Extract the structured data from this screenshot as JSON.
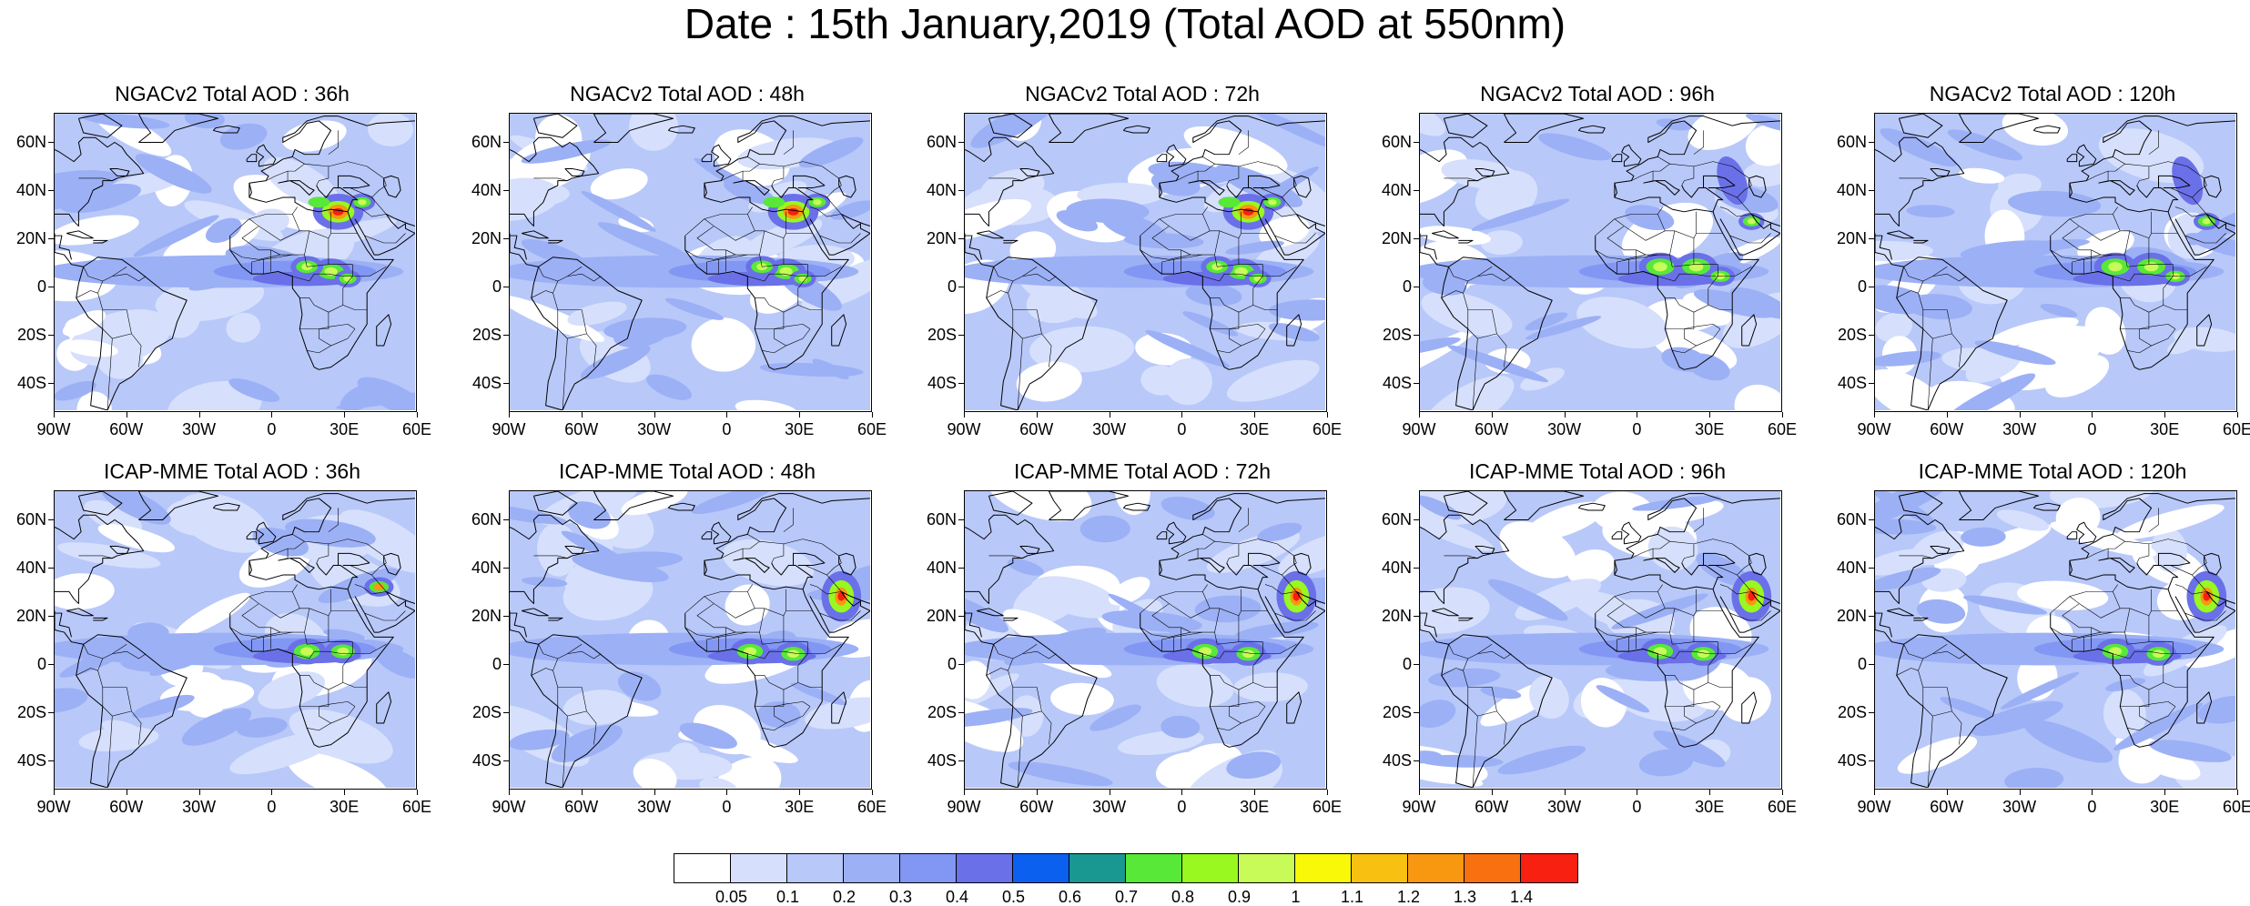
{
  "title": "Date : 15th January,2019 (Total AOD at 550nm)",
  "panels": [
    {
      "title": "NGACv2 Total AOD : 36h",
      "variant": 0,
      "plume": "source-heavy"
    },
    {
      "title": "NGACv2 Total AOD : 48h",
      "variant": 1,
      "plume": "source-heavy"
    },
    {
      "title": "NGACv2 Total AOD : 72h",
      "variant": 2,
      "plume": "source-heavy"
    },
    {
      "title": "NGACv2 Total AOD : 96h",
      "variant": 3,
      "plume": "belt"
    },
    {
      "title": "NGACv2 Total AOD : 120h",
      "variant": 4,
      "plume": "belt"
    },
    {
      "title": "ICAP-MME Total AOD : 36h",
      "variant": 5,
      "plume": "belt-east"
    },
    {
      "title": "ICAP-MME Total AOD : 48h",
      "variant": 6,
      "plume": "belt-arabia"
    },
    {
      "title": "ICAP-MME Total AOD : 72h",
      "variant": 7,
      "plume": "belt-arabia"
    },
    {
      "title": "ICAP-MME Total AOD : 96h",
      "variant": 8,
      "plume": "belt-arabia"
    },
    {
      "title": "ICAP-MME Total AOD : 120h",
      "variant": 9,
      "plume": "belt-arabia"
    }
  ],
  "axes": {
    "lat_ticks": [
      "60N",
      "40N",
      "20N",
      "0",
      "20S",
      "40S"
    ],
    "lon_ticks": [
      "90W",
      "60W",
      "30W",
      "0",
      "30E",
      "60E"
    ],
    "lat_range": [
      -52,
      72
    ],
    "lon_range": [
      -90,
      60
    ]
  },
  "colorbar": {
    "colors": [
      "#ffffff",
      "#d6e0fc",
      "#b8c8f9",
      "#9cb0f6",
      "#8296f3",
      "#6a70e8",
      "#0c60f0",
      "#189890",
      "#58e838",
      "#98f820",
      "#c8fa58",
      "#f8f808",
      "#f8c010",
      "#f89810",
      "#f87010",
      "#f82010"
    ],
    "labels": [
      "0.05",
      "0.1",
      "0.2",
      "0.3",
      "0.4",
      "0.5",
      "0.6",
      "0.7",
      "0.8",
      "0.9",
      "1",
      "1.1",
      "1.2",
      "1.3",
      "1.4"
    ]
  }
}
